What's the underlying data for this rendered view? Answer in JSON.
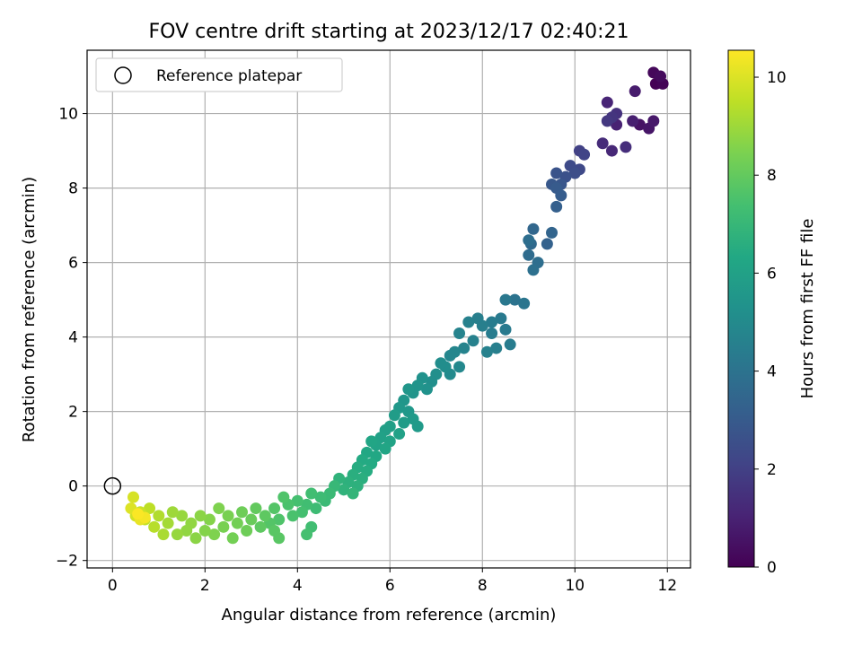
{
  "chart_data": {
    "type": "scatter",
    "title": "FOV centre drift starting at 2023/12/17 02:40:21",
    "xlabel": "Angular distance from reference (arcmin)",
    "ylabel": "Rotation from reference (arcmin)",
    "xlim": [
      -0.55,
      12.5
    ],
    "ylim": [
      -2.2,
      11.7
    ],
    "xticks": [
      0,
      2,
      4,
      6,
      8,
      10,
      12
    ],
    "yticks": [
      -2,
      0,
      2,
      4,
      6,
      8,
      10
    ],
    "grid": true,
    "legend": {
      "position": "top-left",
      "entries": [
        "Reference platepar"
      ]
    },
    "reference_point": {
      "x": 0,
      "y": 0,
      "marker": "open-circle"
    },
    "colorbar": {
      "label": "Hours from first FF file",
      "colormap": "viridis",
      "range": [
        0,
        10.55
      ],
      "ticks": [
        0,
        2,
        4,
        6,
        8,
        10
      ]
    },
    "series": [
      {
        "points": [
          [
            11.75,
            10.8,
            0.0
          ],
          [
            11.9,
            10.8,
            0.1
          ],
          [
            11.7,
            11.1,
            0.2
          ],
          [
            11.85,
            11.0,
            0.3
          ],
          [
            11.4,
            9.7,
            0.5
          ],
          [
            11.6,
            9.6,
            0.6
          ],
          [
            11.7,
            9.8,
            0.7
          ],
          [
            11.3,
            10.6,
            0.8
          ],
          [
            11.25,
            9.8,
            0.9
          ],
          [
            10.9,
            9.7,
            1.0
          ],
          [
            10.7,
            10.3,
            1.1
          ],
          [
            10.8,
            9.0,
            1.2
          ],
          [
            10.6,
            9.2,
            1.3
          ],
          [
            11.1,
            9.1,
            1.4
          ],
          [
            10.9,
            10.0,
            1.5
          ],
          [
            10.8,
            9.9,
            1.6
          ],
          [
            10.7,
            9.8,
            1.7
          ],
          [
            10.1,
            9.0,
            2.0
          ],
          [
            10.2,
            8.9,
            2.1
          ],
          [
            10.1,
            8.5,
            2.3
          ],
          [
            9.9,
            8.6,
            2.4
          ],
          [
            10.0,
            8.4,
            2.5
          ],
          [
            9.8,
            8.3,
            2.6
          ],
          [
            9.6,
            8.4,
            2.7
          ],
          [
            9.7,
            8.1,
            2.8
          ],
          [
            9.5,
            8.1,
            2.9
          ],
          [
            9.6,
            8.0,
            3.0
          ],
          [
            9.7,
            7.8,
            3.1
          ],
          [
            9.6,
            7.5,
            3.2
          ],
          [
            9.4,
            6.5,
            3.3
          ],
          [
            9.5,
            6.8,
            3.4
          ],
          [
            9.1,
            6.9,
            3.5
          ],
          [
            9.05,
            6.5,
            3.6
          ],
          [
            9.0,
            6.2,
            3.7
          ],
          [
            9.2,
            6.0,
            3.8
          ],
          [
            9.1,
            5.8,
            3.9
          ],
          [
            9.0,
            6.6,
            3.8
          ],
          [
            8.7,
            5.0,
            4.0
          ],
          [
            8.9,
            4.9,
            4.1
          ],
          [
            8.5,
            5.0,
            4.2
          ],
          [
            8.4,
            4.5,
            4.3
          ],
          [
            8.2,
            4.4,
            4.4
          ],
          [
            8.0,
            4.3,
            4.5
          ],
          [
            8.2,
            4.1,
            4.4
          ],
          [
            8.5,
            4.2,
            4.3
          ],
          [
            8.6,
            3.8,
            4.4
          ],
          [
            8.3,
            3.7,
            4.5
          ],
          [
            8.1,
            3.6,
            4.6
          ],
          [
            7.9,
            4.5,
            4.5
          ],
          [
            7.7,
            4.4,
            4.6
          ],
          [
            7.5,
            4.1,
            4.7
          ],
          [
            7.8,
            3.9,
            4.6
          ],
          [
            7.6,
            3.7,
            4.7
          ],
          [
            7.4,
            3.6,
            4.8
          ],
          [
            7.3,
            3.5,
            4.8
          ],
          [
            7.5,
            3.2,
            4.9
          ],
          [
            7.3,
            3.0,
            5.0
          ],
          [
            7.2,
            3.2,
            5.1
          ],
          [
            7.1,
            3.3,
            5.1
          ],
          [
            7.0,
            3.0,
            5.2
          ],
          [
            6.9,
            2.8,
            5.2
          ],
          [
            6.8,
            2.6,
            5.3
          ],
          [
            6.7,
            2.9,
            5.3
          ],
          [
            6.6,
            2.7,
            5.4
          ],
          [
            6.5,
            2.5,
            5.4
          ],
          [
            6.4,
            2.6,
            5.5
          ],
          [
            6.3,
            2.3,
            5.5
          ],
          [
            6.2,
            2.1,
            5.6
          ],
          [
            6.4,
            2.0,
            5.6
          ],
          [
            6.5,
            1.8,
            5.7
          ],
          [
            6.6,
            1.6,
            5.7
          ],
          [
            6.3,
            1.7,
            5.8
          ],
          [
            6.1,
            1.9,
            5.8
          ],
          [
            6.0,
            1.6,
            5.9
          ],
          [
            5.9,
            1.5,
            5.9
          ],
          [
            6.2,
            1.4,
            6.0
          ],
          [
            5.8,
            1.3,
            6.0
          ],
          [
            6.0,
            1.2,
            6.1
          ],
          [
            5.7,
            1.1,
            6.1
          ],
          [
            5.6,
            1.2,
            6.2
          ],
          [
            5.9,
            1.0,
            6.2
          ],
          [
            5.5,
            0.9,
            6.3
          ],
          [
            5.7,
            0.8,
            6.3
          ],
          [
            5.4,
            0.7,
            6.4
          ],
          [
            5.6,
            0.6,
            6.4
          ],
          [
            5.3,
            0.5,
            6.5
          ],
          [
            5.5,
            0.4,
            6.5
          ],
          [
            5.2,
            0.3,
            6.6
          ],
          [
            5.4,
            0.2,
            6.6
          ],
          [
            5.1,
            0.1,
            6.7
          ],
          [
            5.3,
            0.0,
            6.7
          ],
          [
            5.0,
            -0.1,
            6.8
          ],
          [
            4.9,
            0.2,
            6.8
          ],
          [
            5.2,
            -0.2,
            6.9
          ],
          [
            4.8,
            0.0,
            7.0
          ],
          [
            4.7,
            -0.2,
            7.1
          ],
          [
            4.6,
            -0.4,
            7.1
          ],
          [
            4.5,
            -0.3,
            7.2
          ],
          [
            4.4,
            -0.6,
            7.2
          ],
          [
            4.3,
            -0.2,
            7.3
          ],
          [
            4.2,
            -0.5,
            7.3
          ],
          [
            4.1,
            -0.7,
            7.4
          ],
          [
            4.0,
            -0.4,
            7.4
          ],
          [
            3.9,
            -0.8,
            7.5
          ],
          [
            3.8,
            -0.5,
            7.5
          ],
          [
            3.7,
            -0.3,
            7.6
          ],
          [
            3.6,
            -0.9,
            7.6
          ],
          [
            3.5,
            -0.6,
            7.7
          ],
          [
            3.4,
            -1.0,
            7.7
          ],
          [
            4.3,
            -1.1,
            7.3
          ],
          [
            4.2,
            -1.3,
            7.4
          ],
          [
            3.6,
            -1.4,
            7.8
          ],
          [
            3.5,
            -1.2,
            7.8
          ],
          [
            3.3,
            -0.8,
            7.9
          ],
          [
            3.2,
            -1.1,
            7.9
          ],
          [
            3.1,
            -0.6,
            8.0
          ],
          [
            3.0,
            -0.9,
            8.1
          ],
          [
            2.9,
            -1.2,
            8.2
          ],
          [
            2.8,
            -0.7,
            8.2
          ],
          [
            2.7,
            -1.0,
            8.3
          ],
          [
            2.6,
            -1.4,
            8.3
          ],
          [
            2.5,
            -0.8,
            8.4
          ],
          [
            2.4,
            -1.1,
            8.4
          ],
          [
            2.3,
            -0.6,
            8.5
          ],
          [
            2.2,
            -1.3,
            8.5
          ],
          [
            2.1,
            -0.9,
            8.6
          ],
          [
            2.0,
            -1.2,
            8.6
          ],
          [
            1.9,
            -0.8,
            8.7
          ],
          [
            1.8,
            -1.4,
            8.7
          ],
          [
            1.7,
            -1.0,
            8.8
          ],
          [
            1.6,
            -1.2,
            8.8
          ],
          [
            1.5,
            -0.8,
            8.9
          ],
          [
            1.4,
            -1.3,
            8.9
          ],
          [
            1.3,
            -0.7,
            9.0
          ],
          [
            1.2,
            -1.0,
            9.1
          ],
          [
            1.1,
            -1.3,
            9.2
          ],
          [
            1.0,
            -0.8,
            9.3
          ],
          [
            0.9,
            -1.1,
            9.4
          ],
          [
            0.8,
            -0.6,
            9.5
          ],
          [
            0.7,
            -0.9,
            9.6
          ],
          [
            0.6,
            -0.7,
            9.7
          ],
          [
            0.5,
            -0.8,
            9.8
          ],
          [
            0.45,
            -0.3,
            9.9
          ],
          [
            0.4,
            -0.6,
            10.0
          ],
          [
            0.6,
            -0.9,
            10.2
          ],
          [
            0.7,
            -0.85,
            10.4
          ],
          [
            0.55,
            -0.75,
            10.5
          ]
        ]
      }
    ]
  }
}
